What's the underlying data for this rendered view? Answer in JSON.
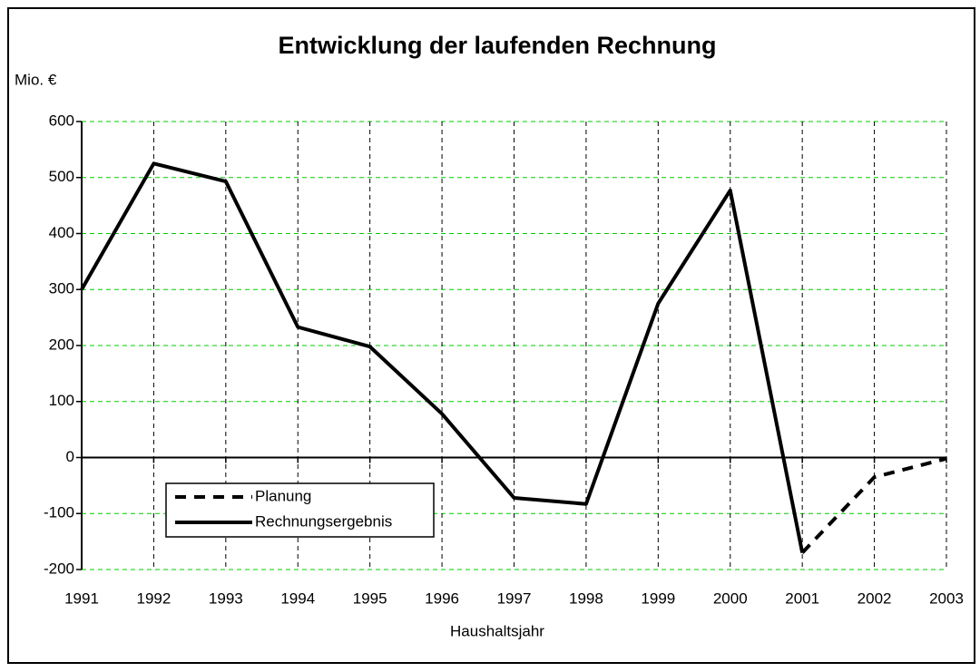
{
  "chart_data": {
    "type": "line",
    "title": "Entwicklung der laufenden Rechnung",
    "y_label": "Mio. €",
    "x_label": "Haushaltsjahr",
    "categories": [
      "1991",
      "1992",
      "1993",
      "1994",
      "1995",
      "1996",
      "1997",
      "1998",
      "1999",
      "2000",
      "2001",
      "2002",
      "2003"
    ],
    "series": [
      {
        "name": "Planung",
        "color": "#000000",
        "dashed": true,
        "values": [
          null,
          null,
          null,
          null,
          null,
          null,
          null,
          null,
          null,
          null,
          -170,
          -35,
          -2
        ]
      },
      {
        "name": "Rechnungsergebnis",
        "color": "#000000",
        "dashed": false,
        "values": [
          300,
          525,
          493,
          233,
          198,
          78,
          -72,
          -83,
          275,
          477,
          -170,
          null,
          null
        ]
      }
    ],
    "ylim": [
      -200,
      600
    ],
    "yticks": [
      -200,
      -100,
      0,
      100,
      200,
      300,
      400,
      500,
      600
    ],
    "grid": true,
    "grid_color": "#00cc00",
    "legend": "lower left"
  }
}
